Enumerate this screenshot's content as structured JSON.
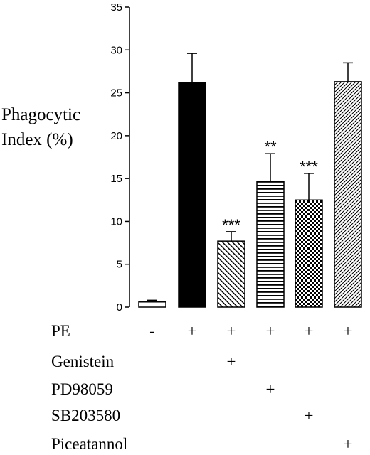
{
  "chart_data": {
    "type": "bar",
    "ylabel": [
      "Phagocytic",
      "Index (%)"
    ],
    "ylim": [
      0,
      35
    ],
    "yticks": [
      0,
      5,
      10,
      15,
      20,
      25,
      30,
      35
    ],
    "grid": false,
    "values": [
      0.6,
      26.2,
      7.7,
      14.7,
      12.5,
      26.3
    ],
    "errors": [
      0.2,
      3.4,
      1.1,
      3.2,
      3.1,
      2.2
    ],
    "significance": [
      "",
      "",
      "***",
      "**",
      "***",
      ""
    ],
    "fills": [
      "white",
      "black",
      "diagonal",
      "horizontal",
      "checker",
      "fine-diagonal"
    ],
    "treatments": [
      {
        "label": "PE",
        "marks": [
          "-",
          "+",
          "+",
          "+",
          "+",
          "+"
        ]
      },
      {
        "label": "Genistein",
        "marks": [
          "",
          "",
          "+",
          "",
          "",
          ""
        ]
      },
      {
        "label": "PD98059",
        "marks": [
          "",
          "",
          "",
          "+",
          "",
          ""
        ]
      },
      {
        "label": "SB203580",
        "marks": [
          "",
          "",
          "",
          "",
          "+",
          ""
        ]
      },
      {
        "label": "Piceatannol",
        "marks": [
          "",
          "",
          "",
          "",
          "",
          "+"
        ]
      }
    ]
  }
}
